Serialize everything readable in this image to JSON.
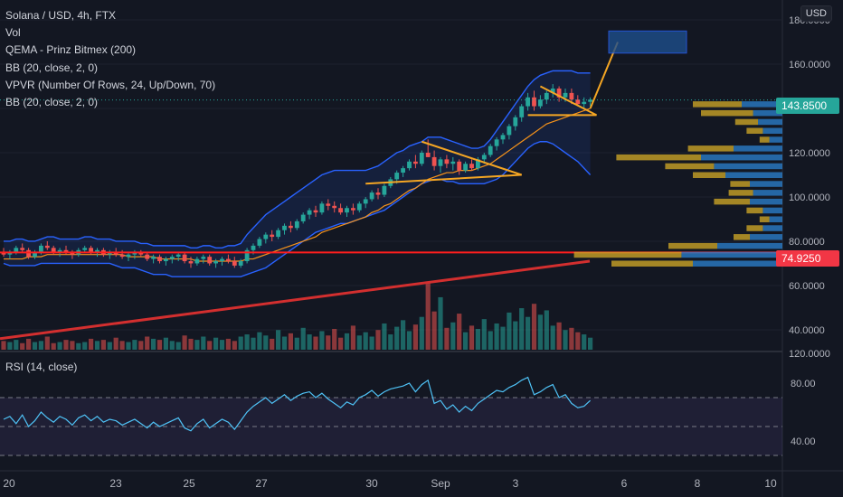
{
  "header": {
    "symbol_line": "Solana / USD, 4h, FTX",
    "indicators": [
      "Vol",
      "QEMA - Prinz Bitmex (200)",
      "BB (20, close, 2, 0)",
      "VPVR (Number Of Rows, 24, Up/Down, 70)",
      "BB (20, close, 2, 0)"
    ]
  },
  "currency_button": "USD",
  "rsi_title": "RSI (14, close)",
  "colors": {
    "background": "#131722",
    "up": "#26a69a",
    "down": "#ef5350",
    "bollinger": "#2962ff",
    "ema": "#f7931a",
    "trendline_red": "#d32f2f",
    "hline_red": "#ff1e1e",
    "pattern": "#f5a623",
    "target_box": "#1e4e8c",
    "rsi": "#4fc3f7",
    "vpvr_up": "#2a7cc7",
    "vpvr_down": "#c9a227"
  },
  "chart_data": {
    "type": "candlestick",
    "title": "Solana / USD, 4h, FTX",
    "price_axis": {
      "ticks": [
        180,
        160,
        140,
        120,
        100,
        80,
        60,
        40
      ],
      "tick_labels": [
        "180.0000",
        "160.0000",
        "140.0000",
        "120.0000",
        "100.0000",
        "80.0000",
        "60.0000",
        "40.0000"
      ],
      "ylim": [
        31,
        189
      ]
    },
    "time_axis": {
      "tick_labels": [
        "20",
        "23",
        "25",
        "27",
        "30",
        "Sep",
        "3",
        "6",
        "8",
        "10"
      ]
    },
    "last_price": {
      "label": "143.8500",
      "value": 143.85
    },
    "horizontal_level": {
      "label": "74.9250",
      "value": 74.925
    },
    "candles_ohlc": [
      [
        75,
        77,
        73,
        74
      ],
      [
        74,
        76,
        72,
        75
      ],
      [
        75,
        78,
        74,
        77
      ],
      [
        77,
        79,
        75,
        76
      ],
      [
        76,
        77,
        72,
        73
      ],
      [
        73,
        76,
        72,
        75
      ],
      [
        75,
        79,
        74,
        78
      ],
      [
        78,
        80,
        76,
        77
      ],
      [
        77,
        78,
        74,
        75
      ],
      [
        75,
        77,
        73,
        76
      ],
      [
        76,
        78,
        74,
        75
      ],
      [
        75,
        76,
        72,
        74
      ],
      [
        74,
        77,
        73,
        76
      ],
      [
        76,
        78,
        75,
        77
      ],
      [
        77,
        78,
        74,
        75
      ],
      [
        75,
        77,
        73,
        76
      ],
      [
        76,
        77,
        73,
        74
      ],
      [
        74,
        76,
        72,
        75
      ],
      [
        75,
        77,
        73,
        74
      ],
      [
        74,
        76,
        72,
        73
      ],
      [
        73,
        75,
        71,
        74
      ],
      [
        74,
        76,
        72,
        75
      ],
      [
        75,
        76,
        73,
        74
      ],
      [
        74,
        75,
        71,
        72
      ],
      [
        72,
        74,
        70,
        73
      ],
      [
        73,
        74,
        70,
        71
      ],
      [
        71,
        73,
        69,
        72
      ],
      [
        72,
        74,
        70,
        73
      ],
      [
        73,
        75,
        71,
        74
      ],
      [
        74,
        75,
        70,
        71
      ],
      [
        71,
        73,
        68,
        70
      ],
      [
        70,
        73,
        69,
        72
      ],
      [
        72,
        74,
        70,
        73
      ],
      [
        73,
        74,
        69,
        70
      ],
      [
        70,
        72,
        68,
        71
      ],
      [
        71,
        73,
        69,
        72
      ],
      [
        72,
        74,
        70,
        71
      ],
      [
        71,
        73,
        68,
        69
      ],
      [
        69,
        72,
        68,
        71
      ],
      [
        71,
        77,
        70,
        76
      ],
      [
        76,
        79,
        74,
        78
      ],
      [
        78,
        82,
        77,
        81
      ],
      [
        81,
        84,
        79,
        83
      ],
      [
        83,
        85,
        80,
        82
      ],
      [
        82,
        86,
        81,
        85
      ],
      [
        85,
        88,
        83,
        87
      ],
      [
        87,
        89,
        84,
        86
      ],
      [
        86,
        90,
        85,
        89
      ],
      [
        89,
        93,
        88,
        92
      ],
      [
        92,
        95,
        90,
        94
      ],
      [
        94,
        96,
        91,
        93
      ],
      [
        93,
        98,
        92,
        97
      ],
      [
        97,
        99,
        94,
        96
      ],
      [
        96,
        98,
        93,
        95
      ],
      [
        95,
        97,
        92,
        93
      ],
      [
        93,
        96,
        91,
        95
      ],
      [
        95,
        97,
        92,
        94
      ],
      [
        94,
        98,
        93,
        97
      ],
      [
        97,
        100,
        95,
        99
      ],
      [
        99,
        103,
        98,
        102
      ],
      [
        102,
        104,
        99,
        101
      ],
      [
        101,
        106,
        100,
        105
      ],
      [
        105,
        109,
        104,
        108
      ],
      [
        108,
        112,
        106,
        111
      ],
      [
        111,
        114,
        109,
        113
      ],
      [
        113,
        117,
        112,
        116
      ],
      [
        116,
        119,
        113,
        115
      ],
      [
        115,
        121,
        114,
        120
      ],
      [
        120,
        126,
        118,
        118
      ],
      [
        118,
        121,
        112,
        114
      ],
      [
        114,
        118,
        111,
        117
      ],
      [
        117,
        119,
        113,
        115
      ],
      [
        115,
        118,
        112,
        116
      ],
      [
        116,
        117,
        110,
        112
      ],
      [
        112,
        116,
        111,
        115
      ],
      [
        115,
        117,
        112,
        113
      ],
      [
        113,
        118,
        112,
        117
      ],
      [
        117,
        120,
        115,
        119
      ],
      [
        119,
        124,
        118,
        123
      ],
      [
        123,
        127,
        121,
        126
      ],
      [
        126,
        129,
        124,
        128
      ],
      [
        128,
        133,
        126,
        132
      ],
      [
        132,
        137,
        130,
        136
      ],
      [
        136,
        142,
        134,
        141
      ],
      [
        141,
        147,
        139,
        145
      ],
      [
        145,
        148,
        139,
        141
      ],
      [
        141,
        146,
        140,
        144
      ],
      [
        144,
        148,
        142,
        147
      ],
      [
        147,
        151,
        145,
        149
      ],
      [
        149,
        150,
        143,
        145
      ],
      [
        145,
        149,
        143,
        147
      ],
      [
        147,
        149,
        142,
        144
      ],
      [
        144,
        146,
        141,
        142
      ],
      [
        142,
        145,
        140,
        143
      ],
      [
        143,
        145,
        141,
        144
      ]
    ],
    "volume": [
      8,
      7,
      9,
      6,
      10,
      7,
      8,
      12,
      6,
      7,
      9,
      8,
      6,
      7,
      10,
      8,
      9,
      7,
      11,
      8,
      7,
      9,
      8,
      12,
      10,
      9,
      11,
      8,
      7,
      13,
      10,
      9,
      12,
      8,
      11,
      9,
      10,
      8,
      12,
      14,
      11,
      16,
      13,
      10,
      18,
      12,
      15,
      11,
      20,
      14,
      12,
      17,
      13,
      19,
      11,
      15,
      22,
      13,
      16,
      12,
      18,
      24,
      14,
      21,
      27,
      17,
      23,
      30,
      62,
      35,
      48,
      20,
      25,
      33,
      16,
      22,
      19,
      28,
      17,
      24,
      21,
      34,
      26,
      38,
      30,
      42,
      32,
      36,
      22,
      25,
      18,
      20,
      16,
      14,
      11
    ],
    "rsi": {
      "ylim": [
        20,
        100
      ],
      "ticks": [
        80,
        40
      ],
      "tick_labels": [
        "80.00",
        "40.00"
      ],
      "top_label": "120.0000",
      "values": [
        55,
        57,
        52,
        58,
        50,
        54,
        60,
        56,
        53,
        57,
        55,
        51,
        56,
        58,
        54,
        57,
        53,
        55,
        54,
        51,
        53,
        55,
        52,
        49,
        53,
        50,
        52,
        54,
        56,
        49,
        47,
        52,
        55,
        49,
        52,
        55,
        53,
        48,
        54,
        60,
        64,
        67,
        70,
        66,
        69,
        72,
        68,
        71,
        73,
        74,
        70,
        73,
        69,
        66,
        63,
        67,
        65,
        70,
        72,
        75,
        71,
        74,
        76,
        77,
        78,
        80,
        74,
        79,
        82,
        66,
        68,
        62,
        65,
        60,
        64,
        61,
        66,
        69,
        72,
        75,
        74,
        77,
        79,
        82,
        84,
        72,
        74,
        77,
        79,
        70,
        72,
        66,
        63,
        64,
        68
      ]
    },
    "overlays": {
      "bollinger_upper": [
        80,
        80,
        81,
        81,
        80,
        80,
        81,
        82,
        82,
        81,
        81,
        81,
        81,
        82,
        82,
        81,
        81,
        81,
        80,
        80,
        80,
        80,
        79,
        79,
        78,
        78,
        78,
        78,
        78,
        78,
        77,
        77,
        78,
        78,
        77,
        77,
        78,
        78,
        79,
        83,
        86,
        89,
        92,
        94,
        96,
        98,
        100,
        102,
        104,
        106,
        108,
        110,
        111,
        112,
        112,
        112,
        112,
        112,
        112,
        113,
        114,
        116,
        118,
        120,
        121,
        123,
        124,
        125,
        127,
        127,
        127,
        126,
        125,
        124,
        123,
        122,
        122,
        123,
        126,
        130,
        134,
        138,
        142,
        146,
        150,
        153,
        155,
        156,
        157,
        157,
        157,
        157,
        156,
        156,
        156
      ],
      "bollinger_lower": [
        70,
        69,
        69,
        69,
        69,
        69,
        70,
        70,
        70,
        70,
        70,
        70,
        70,
        70,
        70,
        70,
        70,
        70,
        69,
        68,
        68,
        68,
        67,
        66,
        65,
        65,
        65,
        64,
        64,
        64,
        64,
        64,
        64,
        64,
        64,
        64,
        64,
        64,
        64,
        65,
        66,
        67,
        68,
        70,
        72,
        74,
        76,
        78,
        80,
        82,
        84,
        85,
        86,
        87,
        88,
        88,
        89,
        90,
        91,
        92,
        93,
        94,
        96,
        98,
        100,
        102,
        104,
        106,
        107,
        108,
        108,
        107,
        107,
        106,
        106,
        106,
        106,
        106,
        107,
        108,
        110,
        113,
        116,
        119,
        122,
        124,
        125,
        125,
        124,
        122,
        120,
        118,
        116,
        113,
        110
      ],
      "ema": [
        72,
        72,
        72,
        72,
        73,
        73,
        73,
        74,
        74,
        74,
        74,
        74,
        74,
        74,
        74,
        74,
        74,
        74,
        74,
        74,
        73,
        73,
        73,
        73,
        73,
        72,
        72,
        72,
        72,
        72,
        72,
        71,
        71,
        71,
        71,
        71,
        71,
        71,
        71,
        72,
        72,
        73,
        74,
        75,
        76,
        77,
        78,
        79,
        80,
        81,
        82,
        84,
        85,
        86,
        87,
        88,
        89,
        90,
        91,
        93,
        94,
        96,
        97,
        99,
        101,
        103,
        104,
        106,
        108,
        109,
        110,
        111,
        111,
        112,
        112,
        112,
        113,
        114,
        115,
        117,
        119,
        121,
        123,
        125,
        127,
        129,
        131,
        133,
        134,
        135,
        136,
        137,
        138,
        139,
        140
      ]
    },
    "vpvr": [
      {
        "price": 142,
        "up": 0.25,
        "down": 0.3
      },
      {
        "price": 138,
        "up": 0.18,
        "down": 0.32
      },
      {
        "price": 134,
        "up": 0.15,
        "down": 0.14
      },
      {
        "price": 130,
        "up": 0.12,
        "down": 0.1
      },
      {
        "price": 126,
        "up": 0.08,
        "down": 0.06
      },
      {
        "price": 122,
        "up": 0.3,
        "down": 0.28
      },
      {
        "price": 118,
        "up": 0.5,
        "down": 0.52
      },
      {
        "price": 114,
        "up": 0.42,
        "down": 0.3
      },
      {
        "price": 110,
        "up": 0.35,
        "down": 0.2
      },
      {
        "price": 106,
        "up": 0.2,
        "down": 0.12
      },
      {
        "price": 102,
        "up": 0.18,
        "down": 0.15
      },
      {
        "price": 98,
        "up": 0.2,
        "down": 0.22
      },
      {
        "price": 94,
        "up": 0.12,
        "down": 0.1
      },
      {
        "price": 90,
        "up": 0.08,
        "down": 0.06
      },
      {
        "price": 86,
        "up": 0.12,
        "down": 0.1
      },
      {
        "price": 82,
        "up": 0.2,
        "down": 0.1
      },
      {
        "price": 78,
        "up": 0.4,
        "down": 0.3
      },
      {
        "price": 74,
        "up": 0.62,
        "down": 0.66
      },
      {
        "price": 70,
        "up": 0.55,
        "down": 0.5
      }
    ],
    "trendline_volume": {
      "from": 36,
      "to": 71
    }
  }
}
